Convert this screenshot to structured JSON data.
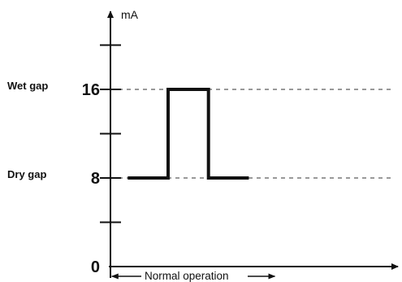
{
  "chart_data": {
    "type": "line",
    "ylabel": "mA",
    "ylim": [
      0,
      20
    ],
    "yticks": [
      0,
      4,
      8,
      12,
      16
    ],
    "ytick_labels": [
      {
        "value": 0,
        "label": "0"
      },
      {
        "value": 8,
        "label": "8"
      },
      {
        "value": 16,
        "label": "16"
      }
    ],
    "reference_levels": [
      {
        "value": 16,
        "name": "Wet gap",
        "style": "dashed"
      },
      {
        "value": 8,
        "name": "Dry gap",
        "style": "dashed"
      }
    ],
    "xlim": [
      0,
      10
    ],
    "series": [
      {
        "x": [
          0.6,
          2.0,
          2.0,
          3.4,
          3.4,
          4.8
        ],
        "y": [
          8,
          8,
          16,
          16,
          8,
          8
        ],
        "style": "step"
      }
    ],
    "span_annotation": {
      "label": "Normal operation",
      "x_start": 0.05,
      "x_end": 5.7
    },
    "grid": false,
    "legend": "none"
  }
}
